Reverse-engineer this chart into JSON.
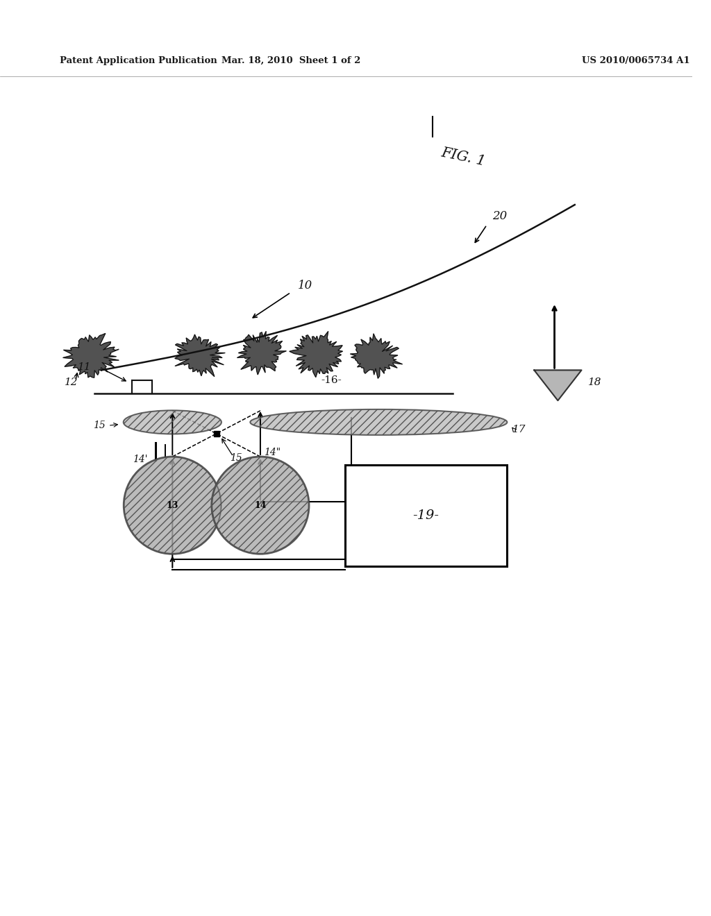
{
  "background_color": "#ffffff",
  "header_left": "Patent Application Publication",
  "header_center": "Mar. 18, 2010  Sheet 1 of 2",
  "header_right": "US 2010/0065734 A1",
  "fig_label": "FIG. 1",
  "label_10": "10",
  "label_11": "11",
  "label_12": "12",
  "label_13": "13",
  "label_14a": "14'",
  "label_14b": "14\"",
  "label_15": "15",
  "label_16": "-16-",
  "label_17": "17",
  "label_18": "18",
  "label_19": "-19-",
  "label_20": "20"
}
